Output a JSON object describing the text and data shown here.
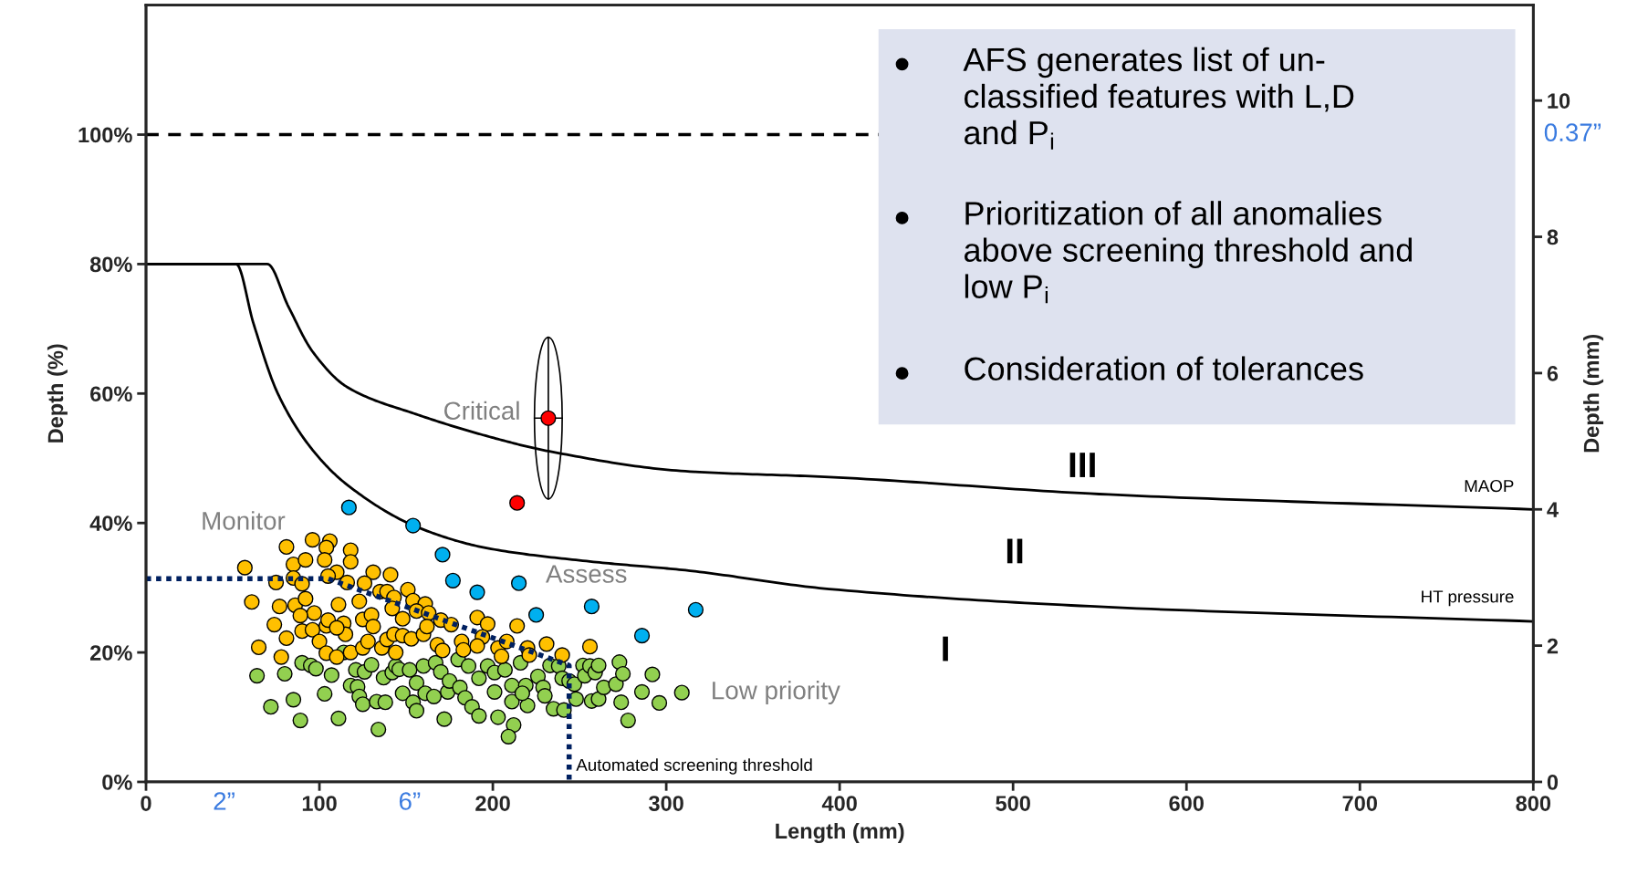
{
  "chart_data": {
    "type": "scatter",
    "xlabel": "Length (mm)",
    "ylabel": "Depth (%)",
    "y2label": "Depth (mm)",
    "xlim": [
      0,
      800
    ],
    "xticks": [
      0,
      100,
      200,
      300,
      400,
      500,
      600,
      700,
      800
    ],
    "ylim": [
      0,
      120
    ],
    "yticks": [
      {
        "value": 0,
        "label": "0%"
      },
      {
        "value": 20,
        "label": "20%"
      },
      {
        "value": 40,
        "label": "40%"
      },
      {
        "value": 60,
        "label": "60%"
      },
      {
        "value": 80,
        "label": "80%"
      },
      {
        "value": 100,
        "label": "100%"
      }
    ],
    "y2lim": [
      0,
      11.4
    ],
    "y2ticks": [
      0,
      2,
      4,
      6,
      8,
      10
    ],
    "marker": "circle",
    "ref_lines": [
      {
        "axis": "y",
        "value": 100,
        "color": "#000000",
        "line_style": "dashed"
      }
    ],
    "annotations": [
      "Critical",
      "Monitor",
      "Assess",
      "Low priority",
      "III",
      "II",
      "I",
      "MAOP",
      "HT pressure",
      "Automated screening threshold",
      "2”",
      "6”",
      "0.37”",
      "AFS generates list of un-\nclassified features with L,D\nand P$_{i}$",
      "Prioritization of all anomalies\nabove screening threshold and\nlow P$_{i}$",
      "Consideration of tolerances"
    ],
    "series": [
      {
        "type": "line",
        "marker": "none",
        "color": "#000000",
        "x": [
          0,
          70,
          82,
          96,
          116,
          157,
          197,
          232,
          311,
          394,
          555,
          800
        ],
        "values": [
          80,
          80,
          73.5,
          66.5,
          61,
          56.7,
          53.4,
          51.1,
          48,
          47.1,
          44.4,
          42.1
        ]
      },
      {
        "type": "line",
        "marker": "none",
        "color": "#000000",
        "x": [
          0,
          52,
          62,
          76,
          96,
          116,
          157,
          197,
          258,
          311,
          394,
          555,
          800
        ],
        "values": [
          80,
          80,
          70.8,
          60,
          51.3,
          45.9,
          39.3,
          36.1,
          34,
          32.7,
          29.8,
          27,
          24.8
        ]
      },
      {
        "type": "line",
        "marker": "none",
        "color": "#002060",
        "line_style": "dotted",
        "x": [
          0,
          105,
          244,
          244
        ],
        "values": [
          31.4,
          31.4,
          18,
          0
        ]
      },
      {
        "color": "#92d050",
        "x": [
          64,
          72,
          80,
          85,
          89,
          90,
          95,
          98,
          103,
          107,
          111,
          114,
          118,
          121,
          122,
          123,
          125,
          126,
          130,
          133,
          134,
          137,
          138,
          142,
          144,
          146,
          148,
          152,
          154,
          156,
          156,
          160,
          161,
          166,
          167,
          170,
          172,
          174,
          175,
          180,
          181,
          184,
          186,
          188,
          192,
          192,
          197,
          201,
          201,
          203,
          207,
          211,
          211,
          212,
          209,
          216,
          219,
          220,
          217,
          226,
          229,
          230,
          233,
          235,
          238,
          240,
          241,
          244,
          247,
          248,
          252,
          253,
          256,
          259,
          261,
          257,
          261,
          264,
          271,
          274,
          273,
          275,
          278,
          286,
          292,
          296,
          309
        ],
        "values": [
          16.4,
          11.6,
          16.7,
          12.7,
          9.5,
          18.4,
          18.0,
          17.5,
          13.6,
          16.5,
          9.8,
          20.0,
          14.9,
          17.3,
          14.7,
          13.2,
          12.0,
          17.0,
          18.1,
          12.4,
          8.1,
          16.1,
          12.3,
          16.9,
          17.9,
          17.4,
          13.7,
          17.3,
          12.3,
          15.3,
          11.0,
          17.9,
          13.7,
          13.2,
          18.4,
          17.0,
          9.7,
          13.9,
          15.6,
          18.9,
          14.6,
          13.0,
          17.9,
          11.6,
          16.0,
          10.2,
          17.9,
          16.9,
          13.9,
          10.0,
          17.3,
          14.9,
          12.4,
          8.8,
          7.0,
          18.4,
          14.9,
          11.8,
          13.7,
          16.3,
          14.6,
          13.3,
          18.0,
          11.3,
          17.9,
          16.0,
          11.1,
          15.6,
          15.1,
          12.8,
          18.0,
          16.4,
          17.9,
          16.9,
          18.0,
          12.5,
          12.8,
          14.6,
          15.1,
          12.3,
          18.5,
          16.7,
          9.5,
          13.9,
          16.6,
          12.2,
          13.8
        ]
      },
      {
        "color": "#ffc000",
        "x": [
          57,
          81,
          96,
          106,
          104,
          85,
          92,
          103,
          118,
          118,
          110,
          131,
          141,
          75,
          85,
          90,
          105,
          116,
          126,
          135,
          139,
          143,
          151,
          154,
          161,
          61,
          77,
          86,
          92,
          97,
          111,
          123,
          89,
          74,
          81,
          90,
          96,
          104,
          105,
          114,
          115,
          110,
          125,
          130,
          131,
          142,
          148,
          156,
          163,
          170,
          176,
          65,
          78,
          100,
          104,
          110,
          118,
          125,
          128,
          136,
          139,
          144,
          143,
          148,
          153,
          160,
          162,
          168,
          171,
          182,
          183,
          191,
          197,
          214,
          194,
          191,
          203,
          205,
          208,
          220,
          221,
          231,
          240,
          256
        ],
        "values": [
          33.1,
          36.3,
          37.4,
          37.2,
          36.2,
          33.6,
          34.3,
          34.3,
          35.8,
          34.0,
          32.4,
          32.4,
          32.0,
          30.8,
          31.5,
          30.6,
          31.8,
          30.8,
          30.7,
          29.4,
          29.4,
          28.5,
          29.7,
          28.0,
          27.5,
          27.8,
          27.1,
          27.3,
          28.3,
          26.1,
          27.4,
          27.9,
          25.7,
          24.3,
          22.2,
          23.3,
          23.5,
          24.1,
          25.0,
          24.5,
          22.8,
          23.8,
          25.1,
          25.8,
          24.0,
          26.8,
          25.2,
          26.4,
          26.1,
          25.0,
          24.3,
          20.8,
          19.3,
          21.7,
          19.9,
          19.3,
          20.0,
          20.7,
          21.7,
          20.7,
          22.0,
          20.0,
          22.8,
          22.6,
          22.1,
          22.8,
          24.0,
          21.2,
          20.3,
          21.7,
          20.4,
          25.4,
          24.4,
          24.1,
          22.4,
          21.0,
          20.7,
          19.4,
          21.7,
          20.7,
          19.6,
          21.3,
          19.6,
          20.9
        ]
      },
      {
        "color": "#00b0f0",
        "x": [
          117,
          154,
          171,
          177,
          191,
          215,
          225,
          257,
          286,
          317
        ],
        "values": [
          42.4,
          39.6,
          35.1,
          31.1,
          29.3,
          30.7,
          25.8,
          27.1,
          22.6,
          26.6
        ]
      },
      {
        "color": "#ff0000",
        "x": [
          232,
          214
        ],
        "values": [
          56.2,
          43.1
        ],
        "errors": [
          12.5,
          null
        ],
        "xerrors": [
          8,
          null
        ]
      }
    ]
  }
}
